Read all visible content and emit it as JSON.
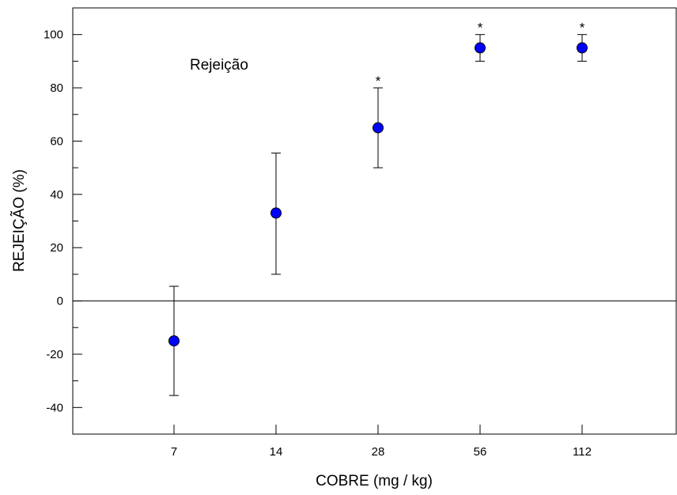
{
  "chart_data": {
    "type": "scatter",
    "title": "",
    "xlabel": "COBRE (mg / kg)",
    "ylabel": "REJEIÇÃO (%)",
    "annotation": "Rejeição",
    "categories": [
      "7",
      "14",
      "28",
      "56",
      "112"
    ],
    "yticks": [
      -40,
      -20,
      0,
      20,
      40,
      60,
      80,
      100
    ],
    "ylim": [
      -50,
      110
    ],
    "zero_line": true,
    "grid": false,
    "series": [
      {
        "values": [
          -15,
          33,
          65,
          95,
          95
        ],
        "error_low": [
          -35.5,
          10,
          50,
          90,
          90
        ],
        "error_high": [
          5.5,
          55.5,
          80,
          100,
          100
        ],
        "significance": [
          "",
          "",
          "*",
          "*",
          "*"
        ],
        "marker_color": "#0000ff",
        "marker_edge": "#000000"
      }
    ]
  }
}
